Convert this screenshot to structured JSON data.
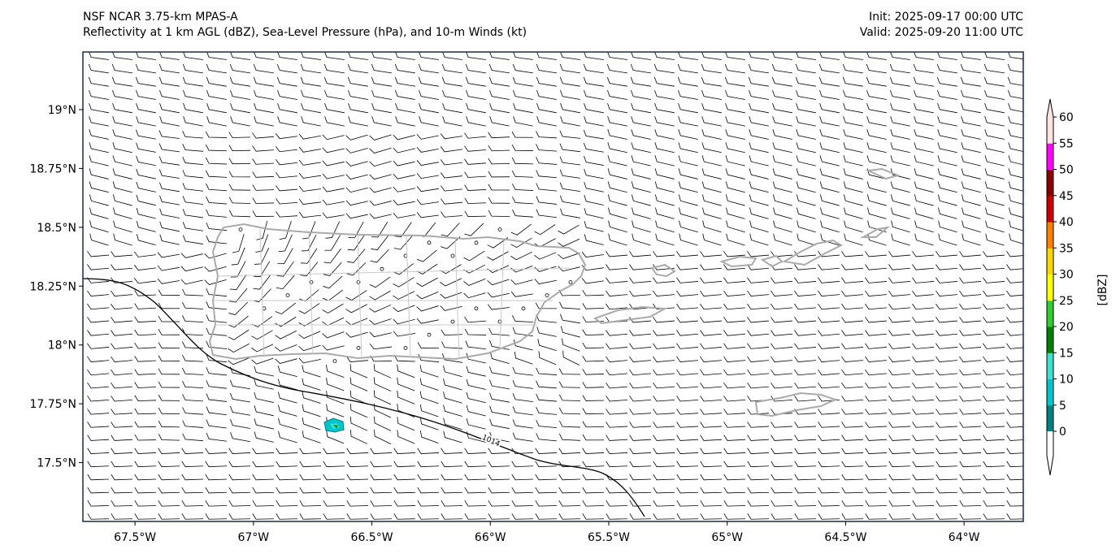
{
  "title": {
    "left_line1": "NSF NCAR 3.75-km MPAS-A",
    "left_line2": "Reflectivity at 1 km AGL (dBZ), Sea-Level Pressure (hPa), and 10-m Winds (kt)",
    "right_line1": "Init: 2025-09-17 00:00 UTC",
    "right_line2": "Valid: 2025-09-20 11:00 UTC"
  },
  "axes": {
    "lon_ticks": [
      "67.5°W",
      "67°W",
      "66.5°W",
      "66°W",
      "65.5°W",
      "65°W",
      "64.5°W",
      "64°W"
    ],
    "lon_values": [
      -67.5,
      -67,
      -66.5,
      -66,
      -65.5,
      -65,
      -64.5,
      -64
    ],
    "lat_ticks": [
      "19°N",
      "18.75°N",
      "18.5°N",
      "18.25°N",
      "18°N",
      "17.75°N",
      "17.5°N"
    ],
    "lat_values": [
      19,
      18.75,
      18.5,
      18.25,
      18,
      17.75,
      17.5
    ],
    "lon_range": [
      -67.72,
      -63.75
    ],
    "lat_range": [
      17.25,
      19.245
    ]
  },
  "isobar": {
    "label": "1014",
    "color": "#000000"
  },
  "colorbar": {
    "label": "[dBZ]",
    "ticks": [
      "0",
      "5",
      "10",
      "15",
      "20",
      "25",
      "30",
      "35",
      "40",
      "45",
      "50",
      "55",
      "60"
    ],
    "colors": [
      "#008080",
      "#00c5cc",
      "#40e0d0",
      "#008000",
      "#32cd32",
      "#ffff00",
      "#ffd700",
      "#ff8000",
      "#cc0000",
      "#8b0000",
      "#ff00ff",
      "#ffe4e1"
    ],
    "under_color": "#ffffff",
    "over_color": "#ffe4e1"
  },
  "colors": {
    "coastline": "#aaaaaa",
    "barb": "#000000",
    "frame": "#1a2a44"
  }
}
